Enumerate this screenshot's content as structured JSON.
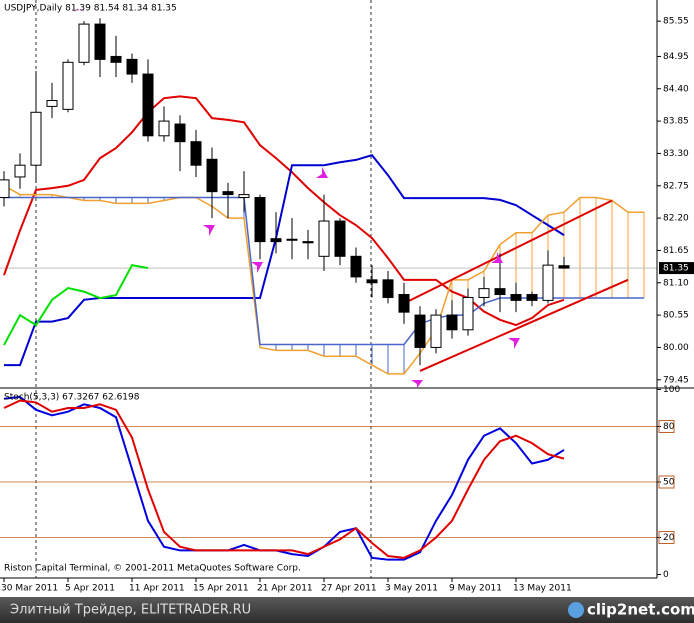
{
  "chart_data": [
    {
      "type": "candlestick",
      "title": "USDJPY,Daily  81.39 81.54 81.34 81.35",
      "categories": [
        "30 Mar 2011",
        null,
        null,
        null,
        "5 Apr 2011",
        null,
        null,
        null,
        "11 Apr 2011",
        null,
        null,
        null,
        "15 Apr 2011",
        null,
        null,
        null,
        "21 Apr 2011",
        null,
        null,
        null,
        "27 Apr 2011",
        null,
        null,
        null,
        "3 May 2011",
        null,
        null,
        null,
        "9 May 2011",
        null,
        null,
        null,
        "13 May 2011",
        null,
        null,
        null,
        null,
        null,
        null,
        null,
        null
      ],
      "open": [
        82.55,
        82.9,
        83.1,
        84.1,
        84.05,
        84.85,
        85.5,
        84.95,
        84.9,
        84.65,
        83.6,
        83.8,
        83.5,
        83.2,
        82.65,
        82.55,
        82.55,
        81.85,
        81.84,
        81.8,
        81.55,
        82.15,
        81.55,
        81.15,
        81.15,
        80.9,
        80.55,
        80.0,
        80.55,
        80.3,
        80.85,
        81.0,
        80.9,
        80.9,
        80.8,
        81.39,
        null,
        null,
        null,
        null,
        null
      ],
      "high": [
        83.0,
        83.3,
        84.7,
        84.5,
        84.9,
        85.55,
        85.6,
        85.3,
        85.0,
        84.9,
        84.1,
        83.95,
        83.7,
        83.4,
        82.8,
        83.0,
        82.6,
        82.3,
        82.2,
        82.0,
        82.6,
        82.2,
        81.7,
        81.4,
        81.3,
        81.1,
        80.7,
        80.65,
        80.8,
        81.0,
        81.2,
        81.6,
        81.1,
        80.95,
        81.65,
        81.54,
        null,
        null,
        null,
        null,
        null
      ],
      "low": [
        82.4,
        82.7,
        82.8,
        83.9,
        84.0,
        84.8,
        84.6,
        84.6,
        84.5,
        83.5,
        83.5,
        83.0,
        82.9,
        82.2,
        82.2,
        82.3,
        81.5,
        81.6,
        81.5,
        81.5,
        81.3,
        81.4,
        81.1,
        80.85,
        80.75,
        80.4,
        79.7,
        79.9,
        80.15,
        80.2,
        80.7,
        80.6,
        80.6,
        80.7,
        80.75,
        81.34,
        null,
        null,
        null,
        null,
        null
      ],
      "close": [
        82.85,
        83.1,
        84.0,
        84.2,
        84.85,
        85.5,
        84.9,
        84.85,
        84.65,
        83.6,
        83.85,
        83.5,
        83.1,
        82.65,
        82.6,
        82.6,
        81.8,
        81.8,
        81.83,
        81.78,
        82.15,
        81.55,
        81.2,
        81.1,
        80.85,
        80.6,
        80.0,
        80.55,
        80.3,
        80.85,
        81.0,
        80.9,
        80.8,
        80.8,
        81.4,
        81.35,
        null,
        null,
        null,
        null,
        null
      ],
      "up_color": "#ffffff",
      "down_color": "#000000",
      "series": [
        {
          "name": "Tenkan-sen",
          "color": "#e00000",
          "values": [
            81.23,
            81.99,
            82.68,
            82.71,
            82.75,
            82.85,
            83.22,
            83.39,
            83.66,
            84.0,
            84.24,
            84.27,
            84.24,
            83.9,
            83.87,
            83.83,
            83.44,
            83.22,
            82.98,
            82.71,
            82.47,
            82.25,
            82.08,
            81.86,
            81.52,
            81.15,
            81.15,
            81.15,
            80.95,
            80.84,
            80.61,
            80.47,
            80.38,
            80.5,
            80.72,
            80.81,
            null,
            null,
            null,
            null,
            null
          ]
        },
        {
          "name": "Kijun-sen",
          "color": "#0000d0",
          "values": [
            79.7,
            79.7,
            80.44,
            80.44,
            80.5,
            80.81,
            80.84,
            80.84,
            80.84,
            80.84,
            80.84,
            80.84,
            80.84,
            80.84,
            80.84,
            80.84,
            80.84,
            81.86,
            83.1,
            83.1,
            83.1,
            83.15,
            83.19,
            83.27,
            82.93,
            82.54,
            82.54,
            82.54,
            82.54,
            82.54,
            82.54,
            82.51,
            82.42,
            82.25,
            82.08,
            81.91,
            null,
            null,
            null,
            null,
            null
          ]
        },
        {
          "name": "Chikou Span",
          "color": "#00e000",
          "values": [
            80.04,
            80.55,
            80.38,
            80.81,
            81.01,
            80.95,
            80.84,
            80.89,
            81.4,
            81.35,
            null,
            null,
            null,
            null,
            null,
            null,
            null,
            null,
            null,
            null,
            null,
            null,
            null,
            null,
            null,
            null,
            null,
            null,
            null,
            null,
            null,
            null,
            null,
            null,
            null,
            null,
            null,
            null,
            null,
            null,
            null
          ]
        },
        {
          "name": "Senkou Span A",
          "color": "#f0a030",
          "values": [
            82.75,
            82.6,
            82.6,
            82.6,
            82.55,
            82.5,
            82.5,
            82.45,
            82.45,
            82.45,
            82.5,
            82.55,
            82.55,
            82.4,
            82.2,
            82.2,
            80.0,
            79.95,
            79.95,
            79.95,
            79.85,
            79.85,
            79.85,
            79.7,
            79.55,
            79.55,
            79.9,
            80.3,
            81.15,
            81.15,
            81.3,
            81.75,
            81.95,
            81.95,
            82.25,
            82.3,
            82.55,
            82.55,
            82.5,
            82.3,
            82.3
          ]
        },
        {
          "name": "Senkou Span B",
          "color": "#4a66c8",
          "values": [
            82.55,
            82.55,
            82.55,
            82.55,
            82.55,
            82.55,
            82.55,
            82.55,
            82.55,
            82.55,
            82.55,
            82.55,
            82.55,
            82.55,
            82.55,
            82.55,
            80.05,
            80.05,
            80.05,
            80.05,
            80.05,
            80.05,
            80.05,
            80.05,
            80.05,
            80.05,
            80.4,
            80.5,
            80.55,
            80.55,
            80.75,
            80.84,
            80.84,
            80.84,
            80.84,
            80.84,
            80.84,
            80.84,
            80.84,
            80.84,
            80.84
          ]
        }
      ],
      "trendlines": [
        {
          "color": "#e00000",
          "x": [
            25,
            38
          ],
          "y": [
            80.75,
            82.5
          ]
        },
        {
          "color": "#e00000",
          "x": [
            26,
            39
          ],
          "y": [
            79.6,
            81.15
          ]
        }
      ],
      "last_price": 81.35,
      "ylim": [
        79.31,
        85.91
      ],
      "yticks": [
        85.55,
        84.95,
        {
          "value": 84.4,
          "label": "84.40"
        },
        83.85,
        {
          "value": 83.3,
          "label": "83.30"
        },
        82.75,
        {
          "value": 82.2,
          "label": "82.20"
        },
        81.65,
        {
          "value": 81.1,
          "label": "81.10"
        },
        80.55,
        {
          "value": 80,
          "label": "80.00"
        },
        79.45
      ]
    },
    {
      "type": "line",
      "title": "Stoch(5,3,3) 67.3267 62.6198",
      "series": [
        {
          "name": "Main",
          "color": "#0000e0",
          "values": [
            95,
            96,
            89,
            86,
            88,
            92,
            90,
            85,
            57,
            29,
            15,
            13,
            13,
            13,
            13,
            16,
            13,
            13,
            11,
            10,
            15,
            23,
            25,
            9,
            8,
            8,
            12,
            29,
            43,
            62,
            75,
            79,
            71,
            60,
            62,
            67.33
          ]
        },
        {
          "name": "Signal",
          "color": "#e00000",
          "values": [
            90,
            94,
            93,
            88,
            90,
            90,
            92,
            89,
            74,
            46,
            23,
            15,
            13,
            13,
            13,
            13,
            13,
            13,
            13,
            11,
            15,
            19,
            25,
            17,
            10,
            9,
            13,
            20,
            29,
            46,
            62,
            72,
            75,
            71,
            65,
            62.62
          ]
        }
      ],
      "levels": [
        80,
        50,
        20
      ],
      "level_color": "#c0602a",
      "ylim": [
        -1.9,
        100.8
      ],
      "yticks": [
        100,
        80,
        50,
        20,
        0
      ]
    }
  ],
  "footer": "Riston Capital Terminal, © 2001-2011 MetaQuotes Software Corp.",
  "watermark": {
    "caption": "Элитный Трейдер, ELITETRADER.RU",
    "logo": "clip2net.com"
  }
}
